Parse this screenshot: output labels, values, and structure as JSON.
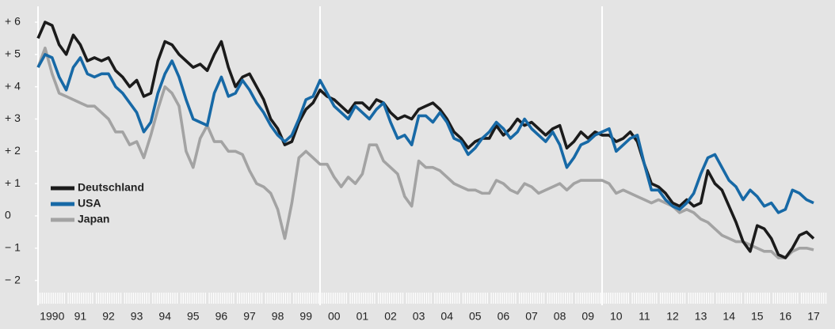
{
  "chart_data": {
    "type": "line",
    "x": [
      1990,
      1990.25,
      1990.5,
      1990.75,
      1991,
      1991.25,
      1991.5,
      1991.75,
      1992,
      1992.25,
      1992.5,
      1992.75,
      1993,
      1993.25,
      1993.5,
      1993.75,
      1994,
      1994.25,
      1994.5,
      1994.75,
      1995,
      1995.25,
      1995.5,
      1995.75,
      1996,
      1996.25,
      1996.5,
      1996.75,
      1997,
      1997.25,
      1997.5,
      1997.75,
      1998,
      1998.25,
      1998.5,
      1998.75,
      1999,
      1999.25,
      1999.5,
      1999.75,
      2000,
      2000.25,
      2000.5,
      2000.75,
      2001,
      2001.25,
      2001.5,
      2001.75,
      2002,
      2002.25,
      2002.5,
      2002.75,
      2003,
      2003.25,
      2003.5,
      2003.75,
      2004,
      2004.25,
      2004.5,
      2004.75,
      2005,
      2005.25,
      2005.5,
      2005.75,
      2006,
      2006.25,
      2006.5,
      2006.75,
      2007,
      2007.25,
      2007.5,
      2007.75,
      2008,
      2008.25,
      2008.5,
      2008.75,
      2009,
      2009.25,
      2009.5,
      2009.75,
      2010,
      2010.25,
      2010.5,
      2010.75,
      2011,
      2011.25,
      2011.5,
      2011.75,
      2012,
      2012.25,
      2012.5,
      2012.75,
      2013,
      2013.25,
      2013.5,
      2013.75,
      2014,
      2014.25,
      2014.5,
      2014.75,
      2015,
      2015.25,
      2015.5,
      2015.75,
      2016,
      2016.25,
      2016.5,
      2016.75,
      2017,
      2017.25,
      2017.5
    ],
    "series": [
      {
        "name": "Deutschland",
        "color": "#1b1b1b",
        "values": [
          5.5,
          6.0,
          5.9,
          5.3,
          5.0,
          5.6,
          5.3,
          4.8,
          4.9,
          4.8,
          4.9,
          4.5,
          4.3,
          4.0,
          4.2,
          3.7,
          3.8,
          4.8,
          5.4,
          5.3,
          5.0,
          4.8,
          4.6,
          4.7,
          4.5,
          5.0,
          5.4,
          4.6,
          4.0,
          4.3,
          4.4,
          4.0,
          3.6,
          3.0,
          2.7,
          2.2,
          2.3,
          2.9,
          3.3,
          3.5,
          3.9,
          3.7,
          3.6,
          3.4,
          3.2,
          3.5,
          3.5,
          3.3,
          3.6,
          3.5,
          3.2,
          3.0,
          3.1,
          3.0,
          3.3,
          3.4,
          3.5,
          3.3,
          3.0,
          2.6,
          2.4,
          2.1,
          2.3,
          2.4,
          2.4,
          2.8,
          2.5,
          2.7,
          3.0,
          2.8,
          2.9,
          2.7,
          2.5,
          2.7,
          2.8,
          2.1,
          2.3,
          2.6,
          2.4,
          2.6,
          2.5,
          2.5,
          2.3,
          2.4,
          2.6,
          2.3,
          1.6,
          1.0,
          0.9,
          0.7,
          0.4,
          0.3,
          0.5,
          0.3,
          0.4,
          1.4,
          1.0,
          0.8,
          0.3,
          -0.2,
          -0.8,
          -1.1,
          -0.3,
          -0.4,
          -0.7,
          -1.2,
          -1.3,
          -1.0,
          -0.6,
          -0.5,
          -0.7
        ]
      },
      {
        "name": "USA",
        "color": "#1769a6",
        "values": [
          4.6,
          5.0,
          4.9,
          4.3,
          3.9,
          4.6,
          4.9,
          4.4,
          4.3,
          4.4,
          4.4,
          4.0,
          3.8,
          3.5,
          3.2,
          2.6,
          2.9,
          3.8,
          4.4,
          4.8,
          4.3,
          3.6,
          3.0,
          2.9,
          2.8,
          3.8,
          4.3,
          3.7,
          3.8,
          4.2,
          3.9,
          3.5,
          3.2,
          2.8,
          2.5,
          2.3,
          2.5,
          3.0,
          3.6,
          3.7,
          4.2,
          3.8,
          3.4,
          3.2,
          3.0,
          3.4,
          3.2,
          3.0,
          3.3,
          3.5,
          2.9,
          2.4,
          2.5,
          2.2,
          3.1,
          3.1,
          2.9,
          3.2,
          2.9,
          2.4,
          2.3,
          1.9,
          2.1,
          2.4,
          2.6,
          2.9,
          2.7,
          2.4,
          2.6,
          3.0,
          2.7,
          2.5,
          2.3,
          2.6,
          2.2,
          1.5,
          1.8,
          2.2,
          2.3,
          2.5,
          2.6,
          2.7,
          2.0,
          2.2,
          2.4,
          2.5,
          1.6,
          0.8,
          0.8,
          0.5,
          0.3,
          0.2,
          0.4,
          0.7,
          1.3,
          1.8,
          1.9,
          1.5,
          1.1,
          0.9,
          0.5,
          0.8,
          0.6,
          0.3,
          0.4,
          0.1,
          0.2,
          0.8,
          0.7,
          0.5,
          0.4
        ]
      },
      {
        "name": "Japan",
        "color": "#a3a3a3",
        "values": [
          4.6,
          5.2,
          4.4,
          3.8,
          3.7,
          3.6,
          3.5,
          3.4,
          3.4,
          3.2,
          3.0,
          2.6,
          2.6,
          2.2,
          2.3,
          1.8,
          2.5,
          3.3,
          4.0,
          3.8,
          3.4,
          2.0,
          1.5,
          2.4,
          2.8,
          2.3,
          2.3,
          2.0,
          2.0,
          1.9,
          1.4,
          1.0,
          0.9,
          0.7,
          0.2,
          -0.7,
          0.4,
          1.8,
          2.0,
          1.8,
          1.6,
          1.6,
          1.2,
          0.9,
          1.2,
          1.0,
          1.3,
          2.2,
          2.2,
          1.7,
          1.5,
          1.3,
          0.6,
          0.3,
          1.7,
          1.5,
          1.5,
          1.4,
          1.2,
          1.0,
          0.9,
          0.8,
          0.8,
          0.7,
          0.7,
          1.1,
          1.0,
          0.8,
          0.7,
          1.0,
          0.9,
          0.7,
          0.8,
          0.9,
          1.0,
          0.8,
          1.0,
          1.1,
          1.1,
          1.1,
          1.1,
          1.0,
          0.7,
          0.8,
          0.7,
          0.6,
          0.5,
          0.4,
          0.5,
          0.4,
          0.3,
          0.1,
          0.2,
          0.1,
          -0.1,
          -0.2,
          -0.4,
          -0.6,
          -0.7,
          -0.8,
          -0.8,
          -0.9,
          -1.0,
          -1.1,
          -1.1,
          -1.3,
          -1.3,
          -1.1,
          -1.0,
          -1.0,
          -1.05
        ]
      }
    ],
    "xlim": [
      1990,
      2018
    ],
    "xticks": [
      {
        "value": 1990.5,
        "label": "1990"
      },
      {
        "value": 1991.5,
        "label": "91"
      },
      {
        "value": 1992.5,
        "label": "92"
      },
      {
        "value": 1993.5,
        "label": "93"
      },
      {
        "value": 1994.5,
        "label": "94"
      },
      {
        "value": 1995.5,
        "label": "95"
      },
      {
        "value": 1996.5,
        "label": "96"
      },
      {
        "value": 1997.5,
        "label": "97"
      },
      {
        "value": 1998.5,
        "label": "98"
      },
      {
        "value": 1999.5,
        "label": "99"
      },
      {
        "value": 2000.5,
        "label": "00"
      },
      {
        "value": 2001.5,
        "label": "01"
      },
      {
        "value": 2002.5,
        "label": "02"
      },
      {
        "value": 2003.5,
        "label": "03"
      },
      {
        "value": 2004.5,
        "label": "04"
      },
      {
        "value": 2005.5,
        "label": "05"
      },
      {
        "value": 2006.5,
        "label": "06"
      },
      {
        "value": 2007.5,
        "label": "07"
      },
      {
        "value": 2008.5,
        "label": "08"
      },
      {
        "value": 2009.5,
        "label": "09"
      },
      {
        "value": 2010.5,
        "label": "10"
      },
      {
        "value": 2011.5,
        "label": "11"
      },
      {
        "value": 2012.5,
        "label": "12"
      },
      {
        "value": 2013.5,
        "label": "13"
      },
      {
        "value": 2014.5,
        "label": "14"
      },
      {
        "value": 2015.5,
        "label": "15"
      },
      {
        "value": 2016.5,
        "label": "16"
      },
      {
        "value": 2017.5,
        "label": "17"
      }
    ],
    "ylim": [
      -2.25,
      6.4
    ],
    "yticks": [
      {
        "value": 6,
        "label": "+ 6"
      },
      {
        "value": 5,
        "label": "+ 5"
      },
      {
        "value": 4,
        "label": "+ 4"
      },
      {
        "value": 3,
        "label": "+ 3"
      },
      {
        "value": 2,
        "label": "+ 2"
      },
      {
        "value": 1,
        "label": "+ 1"
      },
      0,
      {
        "value": -1,
        "label": "− 1"
      },
      {
        "value": -2,
        "label": "− 2"
      }
    ],
    "legend": "left"
  }
}
